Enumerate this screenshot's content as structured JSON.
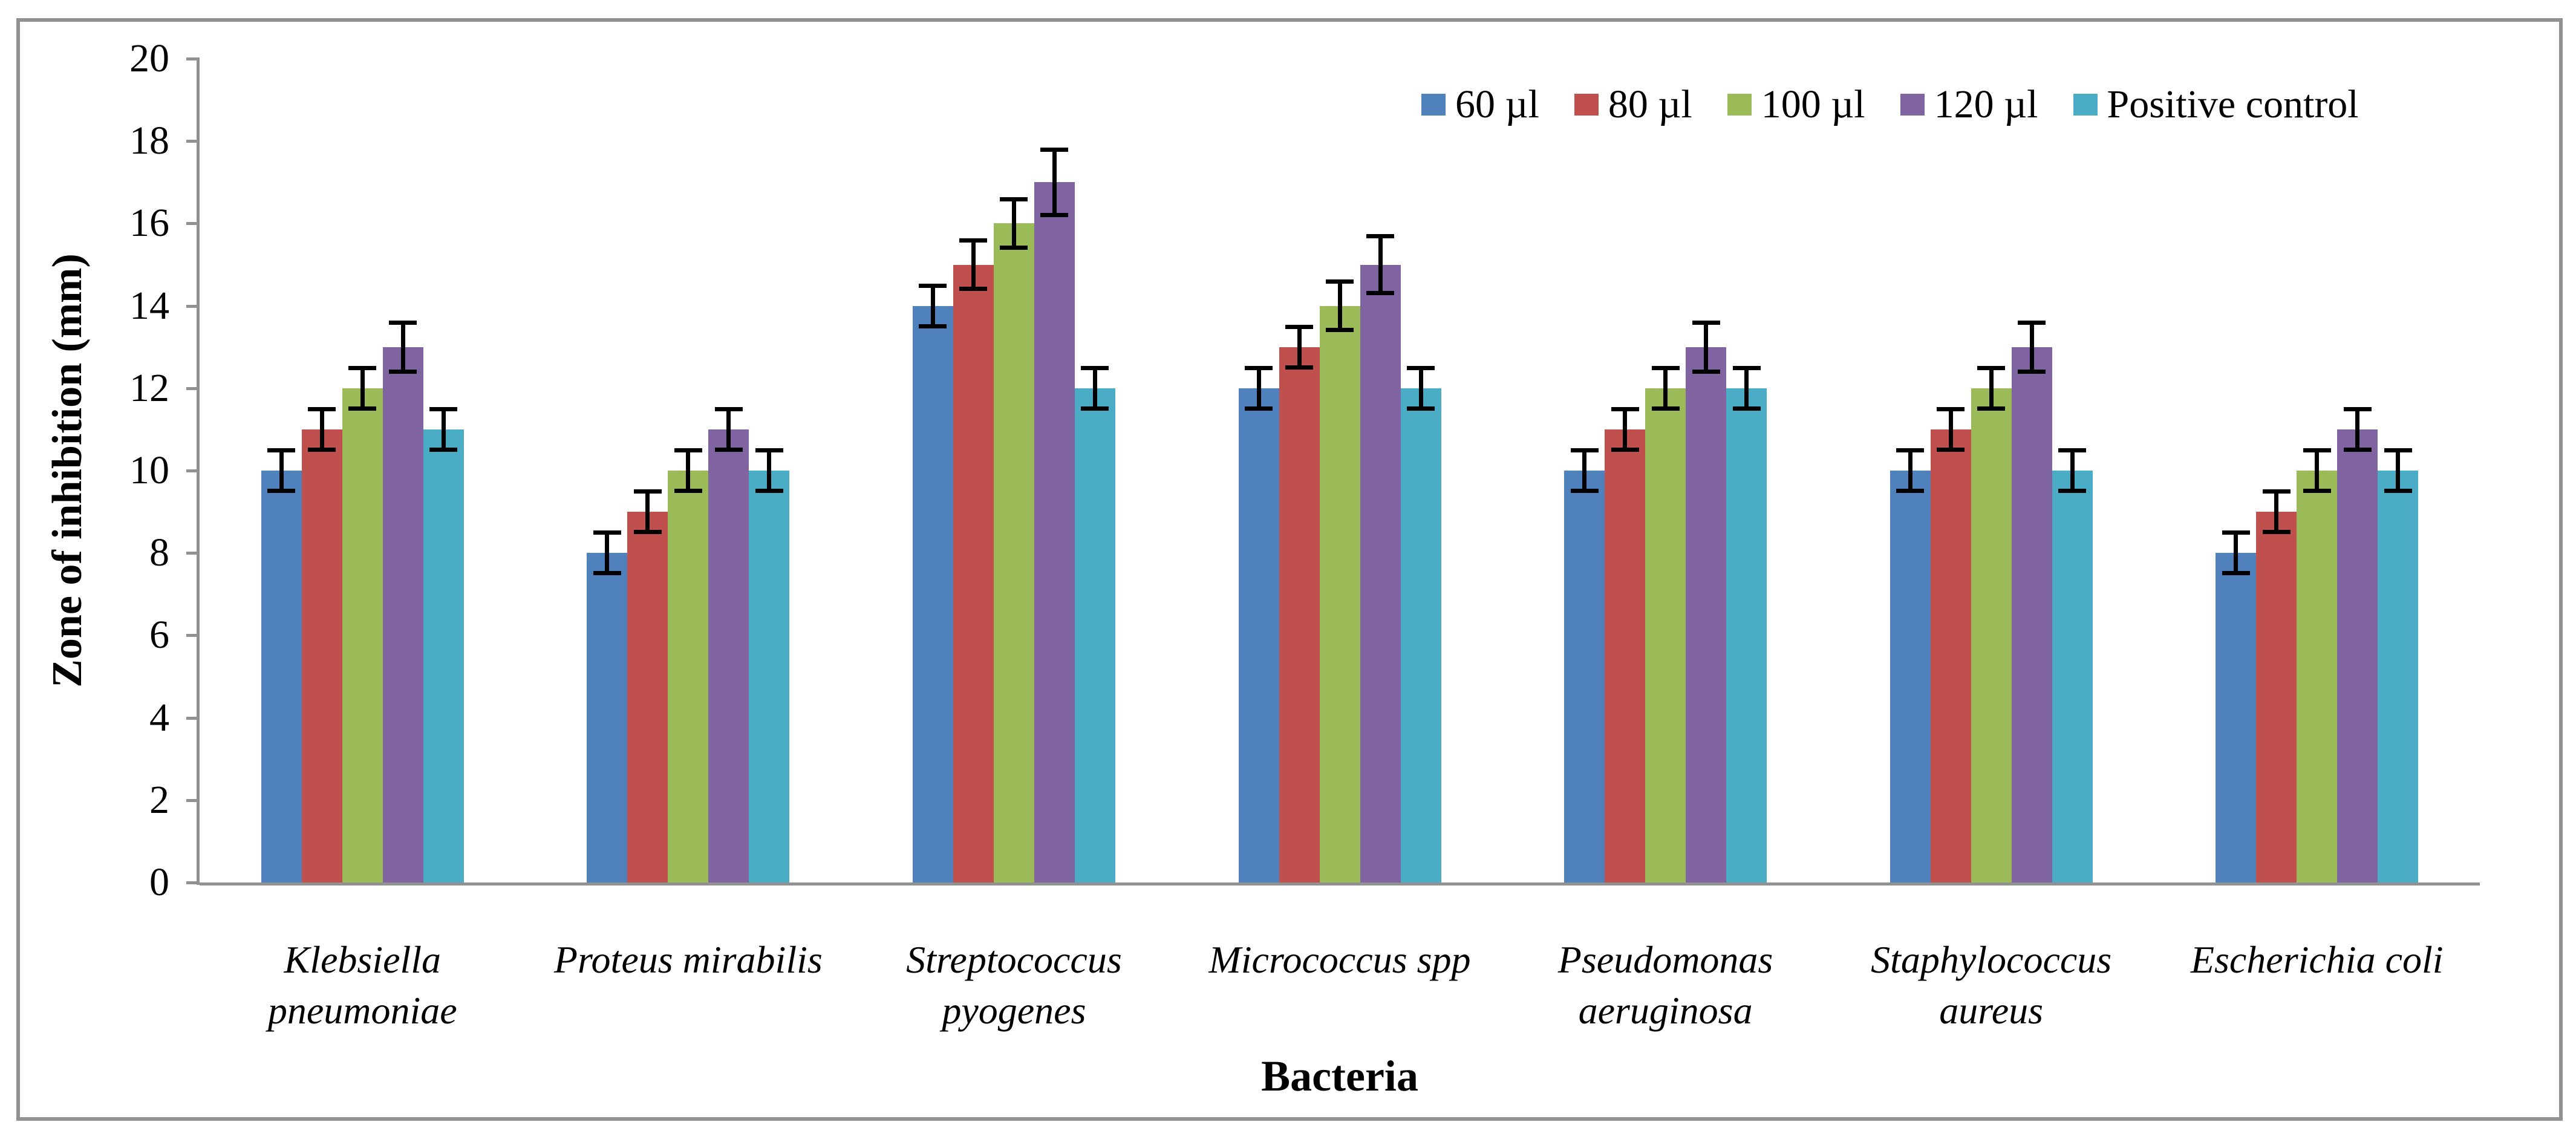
{
  "figure": {
    "background": "#ffffff",
    "frame_color": "#919191"
  },
  "axis": {
    "line_color": "#919191",
    "error_bar_color": "#000000"
  },
  "chart_data": {
    "type": "bar",
    "title": "",
    "xlabel": "Bacteria",
    "ylabel": "Zone of inhibition (mm)",
    "ylim": [
      0,
      20
    ],
    "ytick_step": 2,
    "yticks": [
      0,
      2,
      4,
      6,
      8,
      10,
      12,
      14,
      16,
      18,
      20
    ],
    "grid": false,
    "legend_position": "top",
    "error_bars": true,
    "categories": [
      "Klebsiella pneumoniae",
      "Proteus mirabilis",
      "Streptococcus pyogenes",
      "Micrococcus spp",
      "Pseudomonas aeruginosa",
      "Staphylococcus aureus",
      "Escherichia coli"
    ],
    "series": [
      {
        "name": "60 µl",
        "color": "#4F81BD",
        "values": [
          10,
          8,
          14,
          12,
          10,
          10,
          8
        ],
        "errors": [
          0.5,
          0.5,
          0.5,
          0.5,
          0.5,
          0.5,
          0.5
        ]
      },
      {
        "name": "80 µl",
        "color": "#C0504D",
        "values": [
          11,
          9,
          15,
          13,
          11,
          11,
          9
        ],
        "errors": [
          0.5,
          0.5,
          0.6,
          0.5,
          0.5,
          0.5,
          0.5
        ]
      },
      {
        "name": "100 µl",
        "color": "#9BBB59",
        "values": [
          12,
          10,
          16,
          14,
          12,
          12,
          10
        ],
        "errors": [
          0.5,
          0.5,
          0.6,
          0.6,
          0.5,
          0.5,
          0.5
        ]
      },
      {
        "name": "120 µl",
        "color": "#8064A2",
        "values": [
          13,
          11,
          17,
          15,
          13,
          13,
          11
        ],
        "errors": [
          0.6,
          0.5,
          0.8,
          0.7,
          0.6,
          0.6,
          0.5
        ]
      },
      {
        "name": "Positive control",
        "color": "#4BACC6",
        "values": [
          11,
          10,
          12,
          12,
          12,
          10,
          10
        ],
        "errors": [
          0.5,
          0.5,
          0.5,
          0.5,
          0.5,
          0.5,
          0.5
        ]
      }
    ]
  }
}
